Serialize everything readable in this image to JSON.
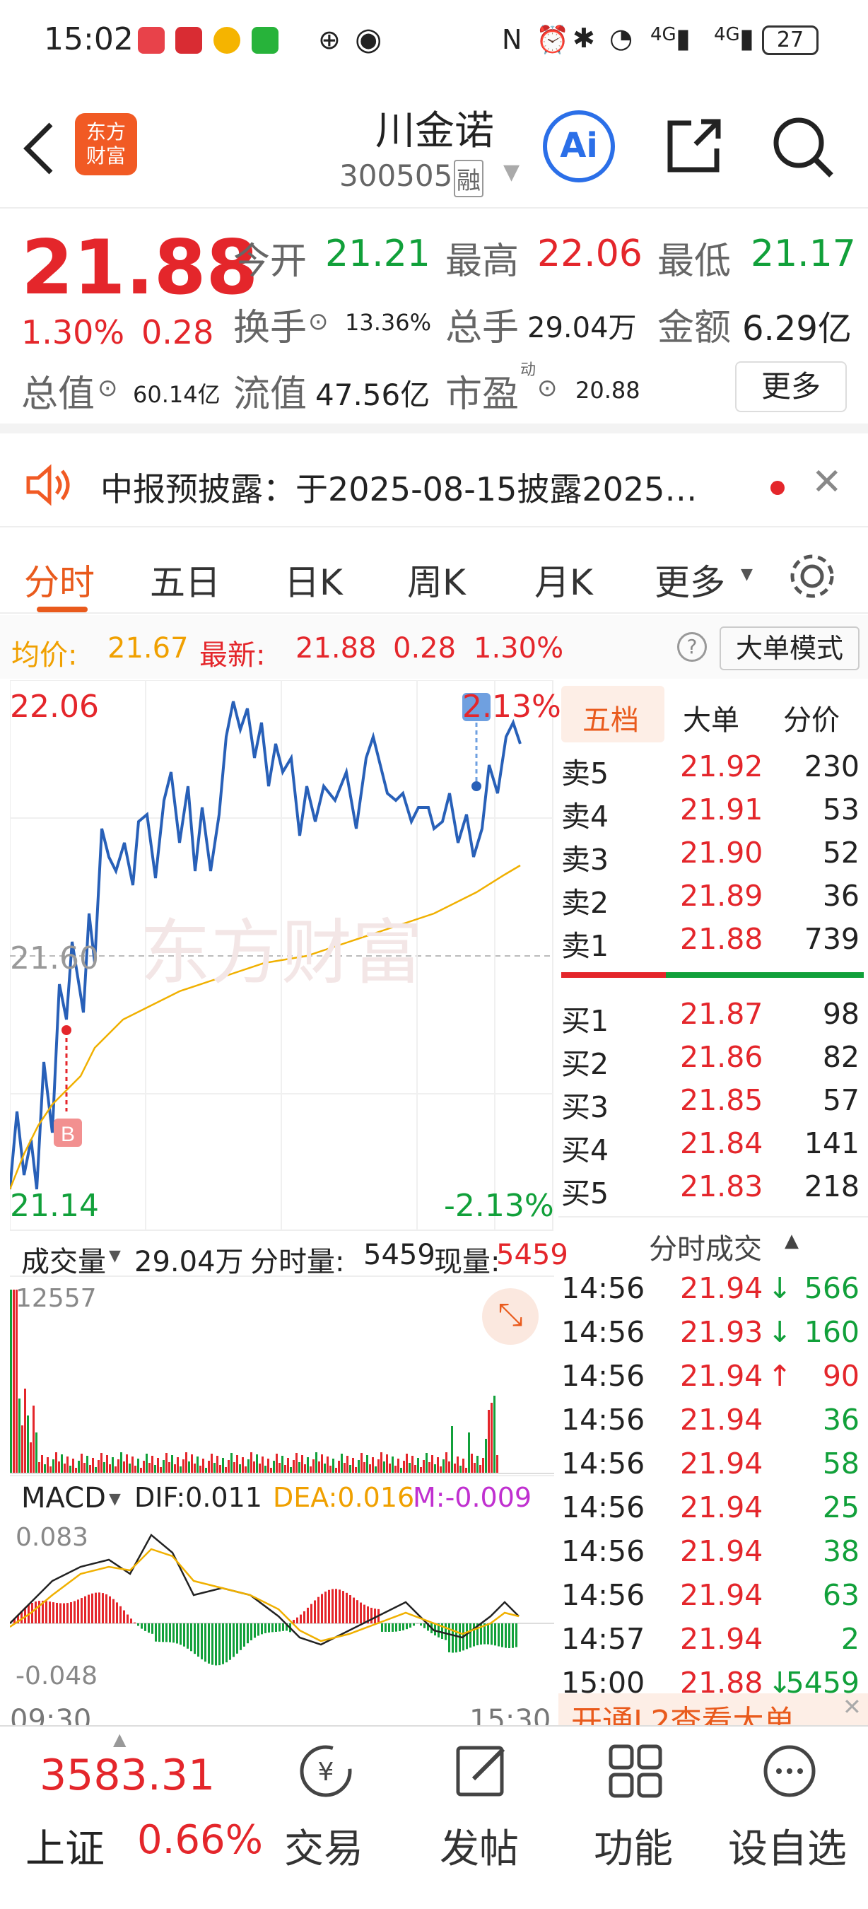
{
  "status": {
    "time": "15:02",
    "network": "4G",
    "battery": "27"
  },
  "header": {
    "logo": "东方\n财富",
    "name": "川金诺",
    "code": "300505",
    "tag": "融",
    "ai": "Ai"
  },
  "quote": {
    "price": "21.88",
    "change_pct": "1.30%",
    "change": "0.28",
    "open_label": "今开",
    "open": "21.21",
    "high_label": "最高",
    "high": "22.06",
    "low_label": "最低",
    "low": "21.17",
    "turnover_label": "换手",
    "turnover": "13.36%",
    "volume_label": "总手",
    "volume": "29.04万",
    "amount_label": "金额",
    "amount": "6.29亿",
    "mktcap_label": "总值",
    "mktcap": "60.14亿",
    "float_label": "流值",
    "float": "47.56亿",
    "pe_label": "市盈",
    "pe_sup": "动",
    "pe": "20.88",
    "more": "更多"
  },
  "notice": {
    "text": "中报预披露：于2025-08-15披露2025…"
  },
  "tabs": [
    "分时",
    "五日",
    "日K",
    "周K",
    "月K",
    "更多"
  ],
  "avg": {
    "avg_label": "均价:",
    "avg": "21.67",
    "last_label": "最新:",
    "last": "21.88",
    "chg": "0.28",
    "pct": "1.30%",
    "mode": "大单模式"
  },
  "chart": {
    "y_top": "22.06",
    "y_bottom": "21.14",
    "pct_top": "2.13%",
    "pct_bottom": "-2.13%",
    "mid": "21.60",
    "buy_marker": "B",
    "watermark": "东方财富",
    "vol_label": "成交量",
    "vol_total": "29.04万",
    "vol_min_label": "分时量:",
    "vol_min": "5459",
    "now_label": "现量:",
    "now": "5459",
    "vol_max": "12557",
    "macd_label": "MACD",
    "dif": "DIF:0.011",
    "dea": "DEA:0.016",
    "m": "M:-0.009",
    "macd_top": "0.083",
    "macd_bottom": "-0.048",
    "t_start": "09:30",
    "t_end": "15:30"
  },
  "book": {
    "tabs": [
      "五档",
      "大单",
      "分价"
    ],
    "asks": [
      {
        "l": "卖5",
        "p": "21.92",
        "v": "230"
      },
      {
        "l": "卖4",
        "p": "21.91",
        "v": "53"
      },
      {
        "l": "卖3",
        "p": "21.90",
        "v": "52"
      },
      {
        "l": "卖2",
        "p": "21.89",
        "v": "36"
      },
      {
        "l": "卖1",
        "p": "21.88",
        "v": "739"
      }
    ],
    "bids": [
      {
        "l": "买1",
        "p": "21.87",
        "v": "98"
      },
      {
        "l": "买2",
        "p": "21.86",
        "v": "82"
      },
      {
        "l": "买3",
        "p": "21.85",
        "v": "57"
      },
      {
        "l": "买4",
        "p": "21.84",
        "v": "141"
      },
      {
        "l": "买5",
        "p": "21.83",
        "v": "218"
      }
    ]
  },
  "ticks": {
    "title": "分时成交",
    "rows": [
      {
        "t": "14:56",
        "p": "21.94",
        "a": "↓",
        "v": "566"
      },
      {
        "t": "14:56",
        "p": "21.93",
        "a": "↓",
        "v": "160"
      },
      {
        "t": "14:56",
        "p": "21.94",
        "a": "↑",
        "v": "90"
      },
      {
        "t": "14:56",
        "p": "21.94",
        "a": "",
        "v": "36"
      },
      {
        "t": "14:56",
        "p": "21.94",
        "a": "",
        "v": "58"
      },
      {
        "t": "14:56",
        "p": "21.94",
        "a": "",
        "v": "25"
      },
      {
        "t": "14:56",
        "p": "21.94",
        "a": "",
        "v": "38"
      },
      {
        "t": "14:56",
        "p": "21.94",
        "a": "",
        "v": "63"
      },
      {
        "t": "14:57",
        "p": "21.94",
        "a": "",
        "v": "2"
      },
      {
        "t": "15:00",
        "p": "21.88",
        "a": "↓",
        "v": "5459"
      }
    ],
    "l2": "开通L2查看大单"
  },
  "bottom": {
    "index_val": "3583.31",
    "index_name": "上证",
    "index_pct": "0.66%",
    "items": [
      "交易",
      "发帖",
      "功能",
      "设自选"
    ]
  }
}
